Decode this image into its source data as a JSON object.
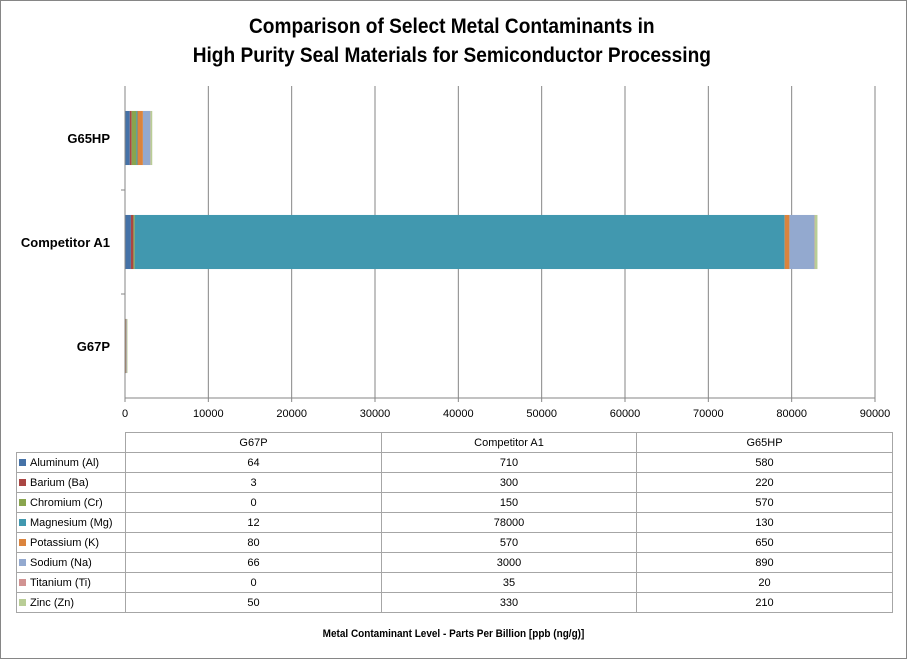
{
  "chart_data": {
    "type": "bar",
    "orientation": "horizontal",
    "stacked": true,
    "title": [
      "Comparison of Select Metal Contaminants in",
      "High Purity Seal Materials for Semiconductor Processing"
    ],
    "xlabel": "Metal Contaminant Level - Parts Per Billion [ppb (ng/g)]",
    "ylabel": "",
    "xlim": [
      0,
      90000
    ],
    "xticks": [
      "0",
      "10000",
      "20000",
      "30000",
      "40000",
      "50000",
      "60000",
      "70000",
      "80000",
      "90000"
    ],
    "grid": "vertical",
    "legend": "data-table",
    "categories": [
      "G67P",
      "Competitor A1",
      "G65HP"
    ],
    "category_labels": [
      "G67P",
      "Competitor A1",
      "G65HP"
    ],
    "series": [
      {
        "name": "Aluminum (Al)",
        "color": "#4572a7",
        "values": [
          64,
          710,
          580
        ],
        "labels": [
          "64",
          "710",
          "580"
        ]
      },
      {
        "name": "Barium (Ba)",
        "color": "#aa4643",
        "values": [
          3,
          300,
          220
        ],
        "labels": [
          "3",
          "300",
          "220"
        ]
      },
      {
        "name": "Chromium (Cr)",
        "color": "#89a54e",
        "values": [
          0,
          150,
          570
        ],
        "labels": [
          "0",
          "150",
          "570"
        ]
      },
      {
        "name": "Magnesium (Mg)",
        "color": "#4198af",
        "values": [
          12,
          78000,
          130
        ],
        "labels": [
          "12",
          "78000",
          "130"
        ]
      },
      {
        "name": "Potassium (K)",
        "color": "#db843d",
        "values": [
          80,
          570,
          650
        ],
        "labels": [
          "80",
          "570",
          "650"
        ]
      },
      {
        "name": "Sodium (Na)",
        "color": "#93a9cf",
        "values": [
          66,
          3000,
          890
        ],
        "labels": [
          "66",
          "3000",
          "890"
        ]
      },
      {
        "name": "Titanium (Ti)",
        "color": "#d19392",
        "values": [
          0,
          35,
          20
        ],
        "labels": [
          "0",
          "35",
          "20"
        ]
      },
      {
        "name": "Zinc (Zn)",
        "color": "#b9cd96",
        "values": [
          50,
          330,
          210
        ],
        "labels": [
          "50",
          "330",
          "210"
        ]
      }
    ]
  }
}
